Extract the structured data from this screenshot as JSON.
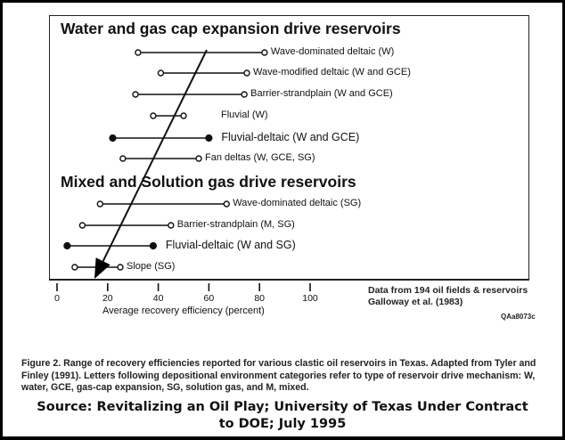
{
  "chart_data": {
    "type": "range",
    "title": "Range of recovery efficiencies reported for various clastic oil reservoirs in Texas",
    "xlabel": "Average recovery efficiency (percent)",
    "ylabel": "",
    "xlim": [
      0,
      100
    ],
    "x_ticks": [
      0,
      20,
      40,
      60,
      80,
      100
    ],
    "groups": [
      {
        "name": "Water and gas cap expansion drive reservoirs",
        "rows": [
          {
            "label": "Wave-dominated deltaic (W)",
            "min": 32,
            "max": 82,
            "filled": false
          },
          {
            "label": "Wave-modified deltaic (W and GCE)",
            "min": 41,
            "max": 75,
            "filled": false
          },
          {
            "label": "Barrier-strandplain (W and GCE)",
            "min": 31,
            "max": 74,
            "filled": false
          },
          {
            "label": "Fluvial (W)",
            "min": 38,
            "max": 50,
            "filled": false
          },
          {
            "label": "Fluvial-deltaic (W and GCE)",
            "min": 22,
            "max": 60,
            "filled": true
          },
          {
            "label": "Fan deltas (W, GCE, SG)",
            "min": 26,
            "max": 56,
            "filled": false
          }
        ]
      },
      {
        "name": "Mixed and Solution gas drive reservoirs",
        "rows": [
          {
            "label": "Wave-dominated deltaic (SG)",
            "min": 17,
            "max": 67,
            "filled": false
          },
          {
            "label": "Barrier-strandplain (M, SG)",
            "min": 10,
            "max": 45,
            "filled": false
          },
          {
            "label": "Fluvial-deltaic (W and SG)",
            "min": 4,
            "max": 38,
            "filled": true
          },
          {
            "label": "Slope (SG)",
            "min": 7,
            "max": 25,
            "filled": false
          }
        ]
      }
    ],
    "annotations": [
      "Trend arrow from upper-right (~59%) down to lower-left (~15%)"
    ],
    "grid": false
  },
  "figure": {
    "section1_title": "Water and gas cap expansion drive reservoirs",
    "section2_title": "Mixed and Solution gas drive reservoirs",
    "note_line1": "Data from 194 oil fields & reservoirs",
    "note_line2": "Galloway et al. (1983)",
    "figure_code": "QAa8073c",
    "tick_labels": [
      "0",
      "20",
      "40",
      "60",
      "80",
      "100"
    ],
    "x_axis_label": "Average recovery efficiency (percent)"
  },
  "caption": "Figure 2. Range of recovery efficiencies reported for various clastic oil reservoirs in Texas. Adapted from Tyler and Finley (1991). Letters following depositional environment categories refer to type of reservoir drive mechanism: W, water, GCE, gas-cap expansion, SG, solution gas, and M, mixed.",
  "source": {
    "line1": "Source: Revitalizing an Oil Play; University of Texas Under Contract",
    "line2": "to DOE; July 1995"
  }
}
